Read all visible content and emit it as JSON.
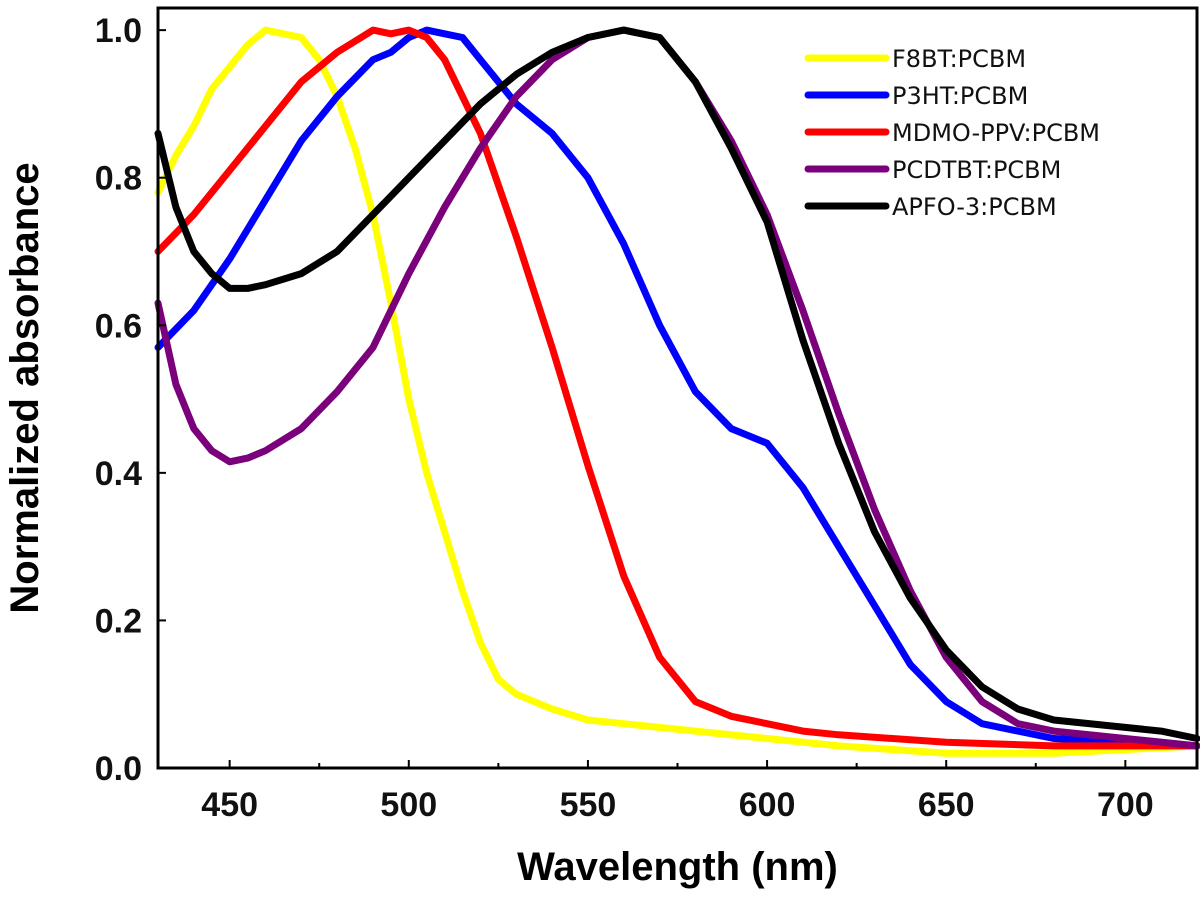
{
  "chart_data": {
    "type": "line",
    "title": "",
    "xlabel": "Wavelength (nm)",
    "ylabel": "Normalized absorbance",
    "xlim": [
      430,
      720
    ],
    "ylim": [
      0.0,
      1.03
    ],
    "xticks": [
      450,
      500,
      550,
      600,
      650,
      700
    ],
    "yticks": [
      0.0,
      0.2,
      0.4,
      0.6,
      0.8,
      1.0
    ],
    "xtick_labels": [
      "450",
      "500",
      "550",
      "600",
      "650",
      "700"
    ],
    "ytick_labels": [
      "0.0",
      "0.2",
      "0.4",
      "0.6",
      "0.8",
      "1.0"
    ],
    "grid": false,
    "legend_position": "top-right",
    "series": [
      {
        "name": "F8BT:PCBM",
        "color": "#ffff00",
        "x": [
          430,
          435,
          440,
          445,
          450,
          455,
          460,
          465,
          470,
          475,
          480,
          485,
          490,
          495,
          500,
          505,
          510,
          515,
          520,
          525,
          530,
          540,
          550,
          560,
          580,
          600,
          620,
          650,
          680,
          720
        ],
        "y": [
          0.78,
          0.83,
          0.87,
          0.92,
          0.95,
          0.98,
          1.0,
          0.995,
          0.99,
          0.96,
          0.91,
          0.84,
          0.75,
          0.63,
          0.5,
          0.4,
          0.32,
          0.24,
          0.17,
          0.12,
          0.1,
          0.08,
          0.065,
          0.06,
          0.05,
          0.04,
          0.03,
          0.02,
          0.02,
          0.03
        ]
      },
      {
        "name": "P3HT:PCBM",
        "color": "#0000ff",
        "x": [
          430,
          440,
          450,
          460,
          470,
          480,
          490,
          495,
          500,
          505,
          510,
          515,
          520,
          530,
          540,
          550,
          560,
          570,
          580,
          590,
          600,
          610,
          620,
          630,
          640,
          650,
          660,
          680,
          720
        ],
        "y": [
          0.57,
          0.62,
          0.69,
          0.77,
          0.85,
          0.91,
          0.96,
          0.97,
          0.99,
          1.0,
          0.995,
          0.99,
          0.96,
          0.9,
          0.86,
          0.8,
          0.71,
          0.6,
          0.51,
          0.46,
          0.44,
          0.38,
          0.3,
          0.22,
          0.14,
          0.09,
          0.06,
          0.04,
          0.03
        ]
      },
      {
        "name": "MDMO-PPV:PCBM",
        "color": "#ff0000",
        "x": [
          430,
          440,
          450,
          460,
          470,
          480,
          485,
          490,
          495,
          500,
          505,
          510,
          520,
          530,
          540,
          550,
          560,
          570,
          580,
          590,
          600,
          610,
          620,
          650,
          680,
          720
        ],
        "y": [
          0.7,
          0.75,
          0.81,
          0.87,
          0.93,
          0.97,
          0.985,
          1.0,
          0.995,
          1.0,
          0.99,
          0.96,
          0.86,
          0.72,
          0.57,
          0.41,
          0.26,
          0.15,
          0.09,
          0.07,
          0.06,
          0.05,
          0.045,
          0.035,
          0.03,
          0.03
        ]
      },
      {
        "name": "PCDTBT:PCBM",
        "color": "#7b007b",
        "x": [
          430,
          435,
          440,
          445,
          450,
          455,
          460,
          470,
          480,
          490,
          500,
          510,
          520,
          530,
          540,
          550,
          560,
          570,
          580,
          590,
          600,
          610,
          620,
          630,
          640,
          650,
          660,
          670,
          680,
          700,
          720
        ],
        "y": [
          0.63,
          0.52,
          0.46,
          0.43,
          0.415,
          0.42,
          0.43,
          0.46,
          0.51,
          0.57,
          0.67,
          0.76,
          0.84,
          0.91,
          0.96,
          0.99,
          1.0,
          0.99,
          0.93,
          0.85,
          0.75,
          0.62,
          0.48,
          0.35,
          0.24,
          0.15,
          0.09,
          0.06,
          0.05,
          0.04,
          0.03
        ]
      },
      {
        "name": "APFO-3:PCBM",
        "color": "#000000",
        "x": [
          430,
          435,
          440,
          445,
          450,
          455,
          460,
          470,
          480,
          490,
          500,
          510,
          520,
          530,
          540,
          550,
          560,
          570,
          580,
          590,
          600,
          610,
          620,
          630,
          640,
          650,
          660,
          670,
          680,
          700,
          710,
          720
        ],
        "y": [
          0.86,
          0.76,
          0.7,
          0.67,
          0.65,
          0.65,
          0.655,
          0.67,
          0.7,
          0.75,
          0.8,
          0.85,
          0.9,
          0.94,
          0.97,
          0.99,
          1.0,
          0.99,
          0.93,
          0.84,
          0.74,
          0.58,
          0.44,
          0.32,
          0.23,
          0.16,
          0.11,
          0.08,
          0.065,
          0.055,
          0.05,
          0.04
        ]
      }
    ]
  }
}
